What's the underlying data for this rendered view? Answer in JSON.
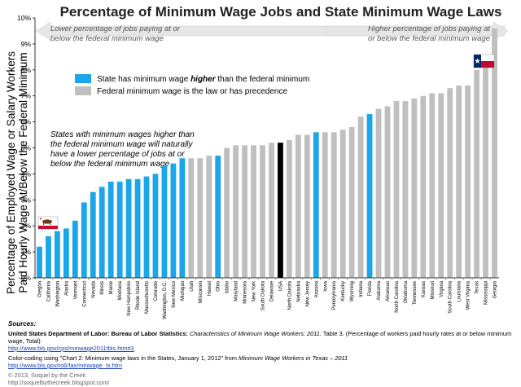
{
  "chart_data": {
    "type": "bar",
    "title": "Percentage of Minimum Wage Jobs and State Minimum Wage Laws",
    "ylabel_line1": "Percentage of Employed Wage or Salary Workers",
    "ylabel_line2": "Paid Hourly Wage At/Below the Federal Minimum",
    "xlabel": "",
    "ylim": [
      0,
      10
    ],
    "ytick_labels": [
      "0%",
      "1%",
      "2%",
      "3%",
      "4%",
      "5%",
      "6%",
      "7%",
      "8%",
      "9%",
      "10%"
    ],
    "yticks": [
      0,
      1,
      2,
      3,
      4,
      5,
      6,
      7,
      8,
      9,
      10
    ],
    "grid": false,
    "categories": [
      "Oregon",
      "California",
      "Washington",
      "Alaska",
      "Vermont",
      "Connecticut",
      "Nevada",
      "Illinois",
      "Maine",
      "Montana",
      "New Hampshire",
      "Rhode Island",
      "Massachusetts",
      "Colorado",
      "Washington, D.C.",
      "New Mexico",
      "Michigan",
      "Utah",
      "Wisconsin",
      "Hawaii",
      "Ohio",
      "Idaho",
      "Maryland",
      "Minnesota",
      "New York",
      "South Dakota",
      "Delaware",
      "USA",
      "North Dakota",
      "Nebraska",
      "New Jersey",
      "Arizona",
      "Iowa",
      "Pennsylvania",
      "Kentucky",
      "Wyoming",
      "Indiana",
      "Florida",
      "Alabama",
      "Arkansas",
      "North Carolina",
      "Oklahoma",
      "Tennessee",
      "Kansas",
      "Missouri",
      "Virginia",
      "South Carolina",
      "Louisiana",
      "West Virginia",
      "Texas",
      "Mississippi",
      "Georgia"
    ],
    "values": [
      1.2,
      1.6,
      1.8,
      1.9,
      2.2,
      2.9,
      3.3,
      3.5,
      3.7,
      3.7,
      3.8,
      3.8,
      3.9,
      4.0,
      4.3,
      4.4,
      4.6,
      4.6,
      4.6,
      4.7,
      4.7,
      5.0,
      5.1,
      5.1,
      5.1,
      5.1,
      5.2,
      5.2,
      5.3,
      5.5,
      5.5,
      5.6,
      5.6,
      5.6,
      5.7,
      5.8,
      6.2,
      6.3,
      6.5,
      6.6,
      6.8,
      6.8,
      6.9,
      7.0,
      7.1,
      7.1,
      7.3,
      7.4,
      7.4,
      8.0,
      8.5,
      9.6
    ],
    "bar_types": [
      "higher",
      "higher",
      "higher",
      "higher",
      "higher",
      "higher",
      "higher",
      "higher",
      "higher",
      "higher",
      "higher",
      "higher",
      "higher",
      "higher",
      "higher",
      "higher",
      "higher",
      "federal",
      "federal",
      "federal",
      "higher",
      "federal",
      "federal",
      "federal",
      "federal",
      "federal",
      "federal",
      "usa",
      "federal",
      "federal",
      "federal",
      "higher",
      "federal",
      "federal",
      "federal",
      "federal",
      "federal",
      "higher",
      "federal",
      "federal",
      "federal",
      "federal",
      "federal",
      "federal",
      "federal",
      "federal",
      "federal",
      "federal",
      "federal",
      "federal",
      "federal",
      "federal"
    ],
    "colors": {
      "higher": "#1aa6e8",
      "federal": "#bfbfbf",
      "usa": "#000000",
      "axis": "#000000",
      "arrow": "#e6e6e6"
    },
    "legend": [
      {
        "label_pre": "State has minimum wage ",
        "label_em": "higher",
        "label_post": " than the federal minimum",
        "type": "higher"
      },
      {
        "label_pre": "Federal minimum wage is the law or has precedence",
        "label_em": "",
        "label_post": "",
        "type": "federal"
      }
    ],
    "legend_position": "upper-left",
    "arrow_left_line1": "Lower percentage of jobs paying at or",
    "arrow_left_line2": "below the federal minimum wage",
    "arrow_right_line1": "Higher percentage of jobs paying at",
    "arrow_right_line2": "or below the federal minimum wage",
    "annotation": [
      "States with minimum wages higher than",
      "the federal minimum wage will naturally",
      "have a lower percentage of jobs at or",
      "below the federal minimum wage"
    ],
    "flags": [
      {
        "name": "california-flag-icon",
        "category": "California"
      },
      {
        "name": "texas-flag-icon",
        "category": "Texas"
      }
    ]
  },
  "footer": {
    "sources_label": "Sources:",
    "bls_org": "United States Department of Labor:  Bureau of Labor Statistics: ",
    "bls_title": "Characteristics of Minimum Wage Workers: 2011.",
    "bls_rest": " Table 3. (Percentage of workers paid hourly rates at or below minimum wage, Total)",
    "bls_url": "http://www.bls.gov/cps/minwage2011tbls.htm#3",
    "color_note_pre": "Color-coding using \"Chart 2: Minimum wage laws in the States, January 1, 2012\" from ",
    "color_note_title": "Minimum Wage Workers in Texas – 2011",
    "color_url": "http://www.bls.gov/ro6/fax/minwage_tx.htm",
    "copyright": "© 2013, Soquel by the Creek",
    "blog_url": "http://soquelbythecreek.blogspot.com/"
  }
}
